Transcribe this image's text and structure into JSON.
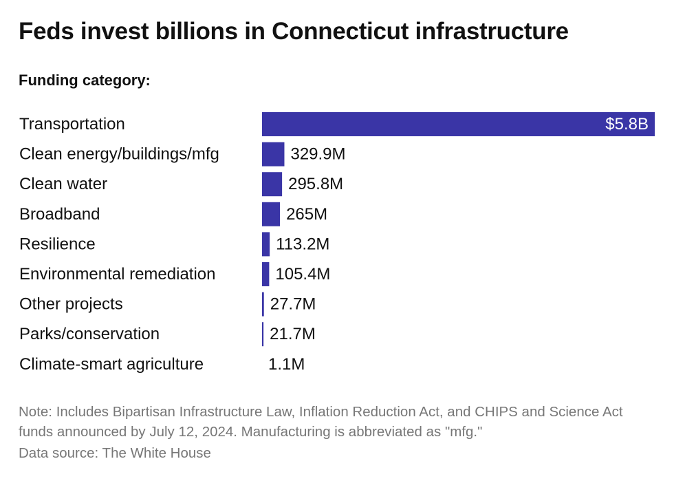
{
  "title": "Feds invest billions in Connecticut infrastructure",
  "subtitle": "Funding category:",
  "note": "Note: Includes Bipartisan Infrastructure Law, Inflation Reduction Act, and CHIPS and Science Act funds announced by July 12, 2024. Manufacturing is abbreviated as \"mfg.\"",
  "source": "Data source: The White House",
  "colors": {
    "bar": "#3a35a6"
  },
  "chart_data": {
    "type": "bar",
    "orientation": "horizontal",
    "categories": [
      "Transportation",
      "Clean energy/buildings/mfg",
      "Clean water",
      "Broadband",
      "Resilience",
      "Environmental remediation",
      "Other projects",
      "Parks/conservation",
      "Climate-smart agriculture"
    ],
    "values": [
      5800,
      329.9,
      295.8,
      265,
      113.2,
      105.4,
      27.7,
      21.7,
      1.1
    ],
    "value_labels": [
      "$5.8B",
      "329.9M",
      "295.8M",
      "265M",
      "113.2M",
      "105.4M",
      "27.7M",
      "21.7M",
      "1.1M"
    ],
    "unit": "millions of dollars",
    "xlim": [
      0,
      5800
    ],
    "grid": false,
    "legend": false
  }
}
